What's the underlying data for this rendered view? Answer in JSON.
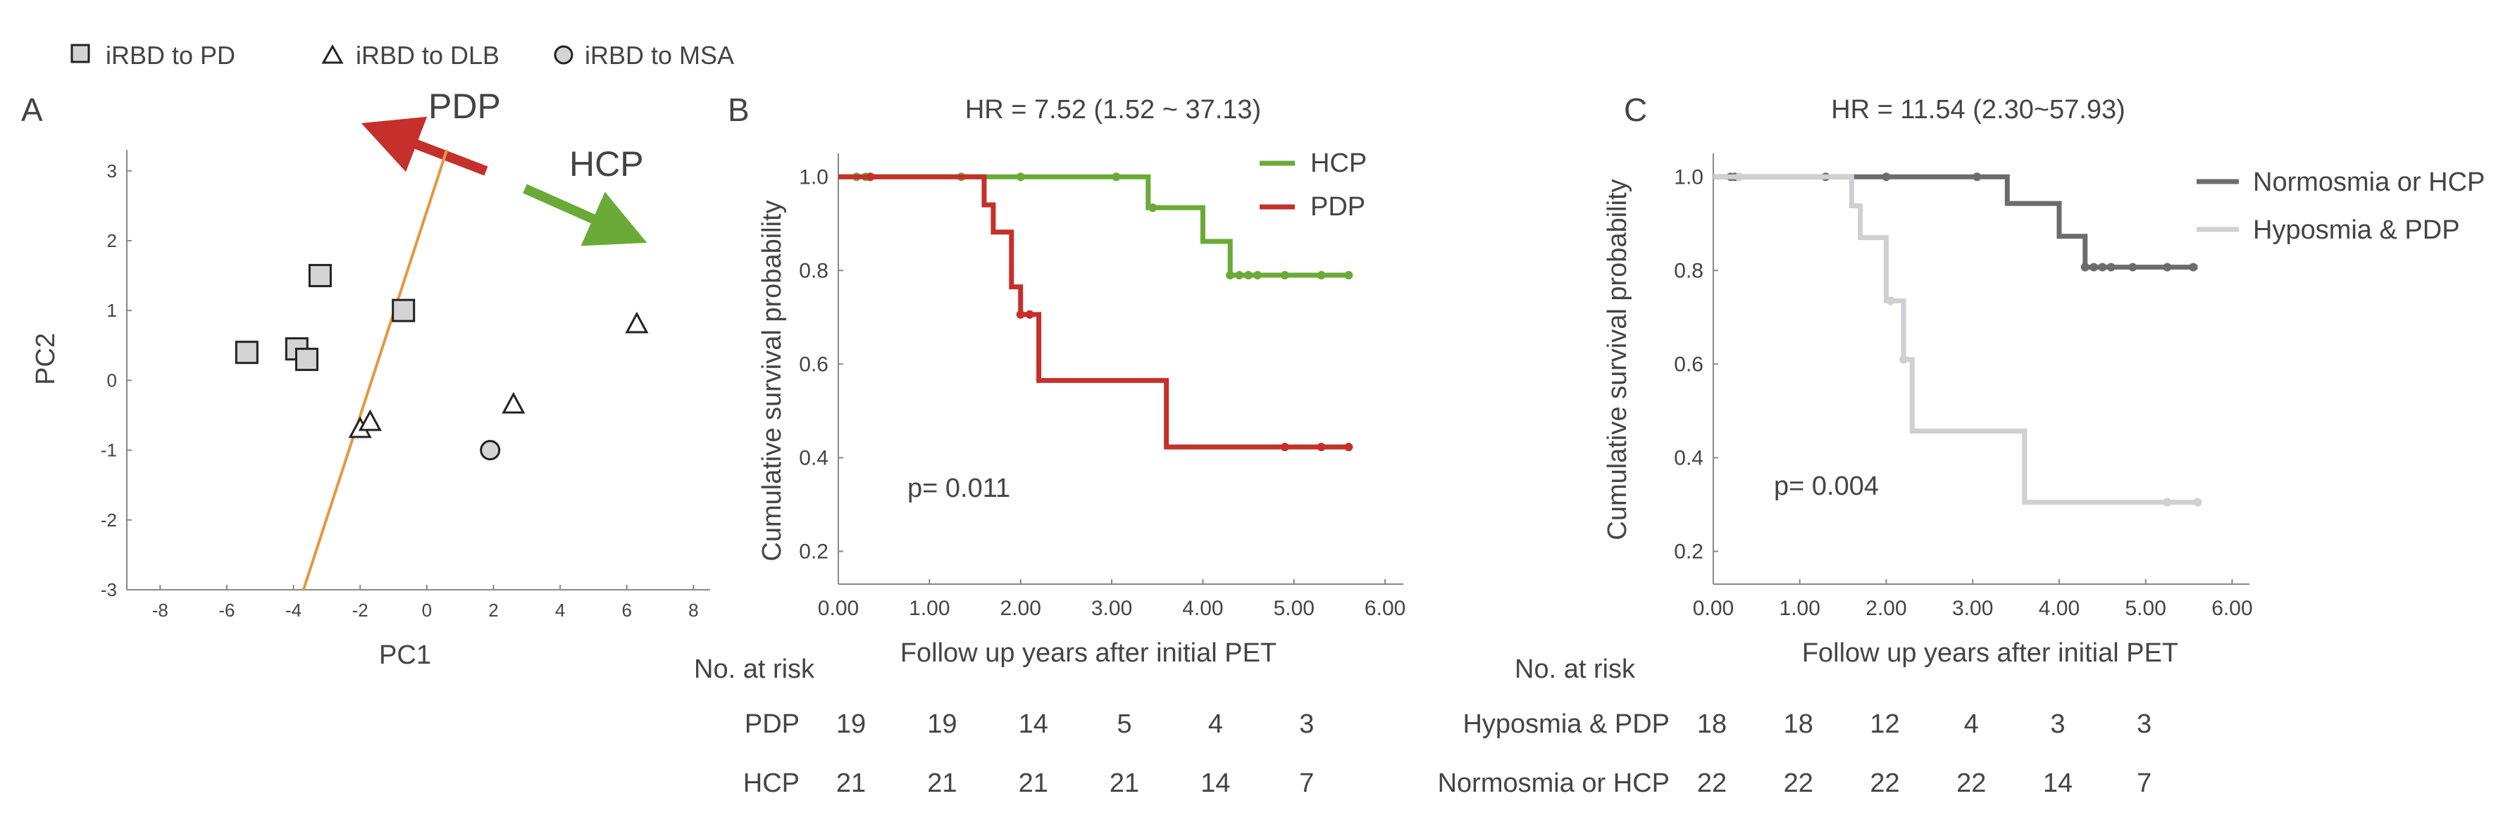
{
  "legend": [
    {
      "label": "iRBD to PD",
      "marker": "square"
    },
    {
      "label": "iRBD to DLB",
      "marker": "triangle"
    },
    {
      "label": "iRBD to MSA",
      "marker": "circle"
    }
  ],
  "colors": {
    "pdp_red": "#c5302a",
    "hcp_green": "#6aaa36",
    "divider_orange": "#e8973f",
    "normosmia_dark": "#6c6c6c",
    "hyposmia_light": "#cfcfd4",
    "marker_fill": "#d4d4d4"
  },
  "panel_a": {
    "label": "A",
    "arrow_pdp_label": "PDP",
    "arrow_hcp_label": "HCP",
    "xlabel": "PC1",
    "ylabel": "PC2",
    "xticks": [
      "-8",
      "-6",
      "-4",
      "-2",
      "0",
      "2",
      "4",
      "6",
      "8"
    ],
    "yticks": [
      "3",
      "2",
      "1",
      "0",
      "-1",
      "-2",
      "-3"
    ]
  },
  "panel_b": {
    "label": "B",
    "title": "HR = 7.52 (1.52 ~ 37.13)",
    "pvalue": "p= 0.011",
    "xlabel": "Follow up years after initial PET",
    "ylabel": "Cumulative survival probability",
    "xticks": [
      "0.00",
      "1.00",
      "2.00",
      "3.00",
      "4.00",
      "5.00",
      "6.00"
    ],
    "yticks": [
      "1.0",
      "0.8",
      "0.6",
      "0.4",
      "0.2"
    ],
    "series_names": [
      "HCP",
      "PDP"
    ],
    "risk_title": "No. at risk",
    "risk_rows": [
      {
        "label": "PDP",
        "values": [
          "19",
          "19",
          "14",
          "5",
          "4",
          "3"
        ]
      },
      {
        "label": "HCP",
        "values": [
          "21",
          "21",
          "21",
          "21",
          "14",
          "7"
        ]
      }
    ]
  },
  "panel_c": {
    "label": "C",
    "title": "HR = 11.54 (2.30~57.93)",
    "pvalue": "p= 0.004",
    "xlabel": "Follow up years after initial PET",
    "ylabel": "Cumulative survival probability",
    "xticks": [
      "0.00",
      "1.00",
      "2.00",
      "3.00",
      "4.00",
      "5.00",
      "6.00"
    ],
    "yticks": [
      "1.0",
      "0.8",
      "0.6",
      "0.4",
      "0.2"
    ],
    "series_names": [
      "Normosmia or HCP",
      "Hyposmia & PDP"
    ],
    "risk_title": "No. at risk",
    "risk_rows": [
      {
        "label": "Hyposmia & PDP",
        "values": [
          "18",
          "18",
          "12",
          "4",
          "3",
          "3"
        ]
      },
      {
        "label": "Normosmia or HCP",
        "values": [
          "22",
          "22",
          "22",
          "22",
          "14",
          "7"
        ]
      }
    ]
  },
  "chart_data": [
    {
      "type": "scatter",
      "xlabel": "PC1",
      "ylabel": "PC2",
      "xlim": [
        -9,
        8.5
      ],
      "ylim": [
        -3,
        3.3
      ],
      "series": [
        {
          "name": "iRBD to PD",
          "points": [
            [
              -5.4,
              0.4
            ],
            [
              -3.9,
              0.45
            ],
            [
              -3.6,
              0.3
            ],
            [
              -3.2,
              1.5
            ],
            [
              -0.7,
              1.0
            ]
          ]
        },
        {
          "name": "iRBD to DLB",
          "points": [
            [
              -2.0,
              -0.7
            ],
            [
              -1.7,
              -0.6
            ],
            [
              2.6,
              -0.35
            ],
            [
              6.3,
              0.8
            ]
          ]
        },
        {
          "name": "iRBD to MSA",
          "points": [
            [
              1.9,
              -1.0
            ]
          ]
        }
      ],
      "divider_line": [
        [
          -3.7,
          -3.0
        ],
        [
          0.6,
          3.3
        ]
      ]
    },
    {
      "type": "line",
      "title": "HR = 7.52 (1.52 ~ 37.13)",
      "xlabel": "Follow up years after initial PET",
      "ylabel": "Cumulative survival probability",
      "xlim": [
        0,
        6.2
      ],
      "ylim": [
        0.13,
        1.05
      ],
      "series": [
        {
          "name": "HCP",
          "steps": [
            [
              0,
              1.0
            ],
            [
              3.4,
              0.934
            ],
            [
              4.0,
              0.862
            ],
            [
              4.3,
              0.79
            ],
            [
              5.6,
              0.79
            ]
          ],
          "censor": [
            0.2,
            0.3,
            1.35,
            2.0,
            3.05,
            3.45,
            4.3,
            4.4,
            4.5,
            4.6,
            4.9,
            5.3,
            5.6
          ]
        },
        {
          "name": "PDP",
          "steps": [
            [
              0,
              1.0
            ],
            [
              1.6,
              0.94
            ],
            [
              1.7,
              0.882
            ],
            [
              1.9,
              0.765
            ],
            [
              2.0,
              0.706
            ],
            [
              2.2,
              0.565
            ],
            [
              3.6,
              0.423
            ],
            [
              5.6,
              0.423
            ]
          ],
          "censor": [
            0.35,
            2.0,
            2.1,
            4.9,
            5.3,
            5.6
          ]
        }
      ]
    },
    {
      "type": "line",
      "title": "HR = 11.54 (2.30~57.93)",
      "xlabel": "Follow up years after initial PET",
      "ylabel": "Cumulative survival probability",
      "xlim": [
        0,
        6.2
      ],
      "ylim": [
        0.13,
        1.05
      ],
      "series": [
        {
          "name": "Normosmia or HCP",
          "steps": [
            [
              0,
              1.0
            ],
            [
              3.4,
              0.943
            ],
            [
              4.0,
              0.873
            ],
            [
              4.3,
              0.807
            ],
            [
              5.6,
              0.807
            ]
          ],
          "censor": [
            0.2,
            0.25,
            1.3,
            2.0,
            3.05,
            4.3,
            4.4,
            4.5,
            4.6,
            4.85,
            5.25,
            5.55
          ]
        },
        {
          "name": "Hyposmia & PDP",
          "steps": [
            [
              0,
              1.0
            ],
            [
              1.6,
              0.938
            ],
            [
              1.7,
              0.87
            ],
            [
              2.0,
              0.735
            ],
            [
              2.2,
              0.61
            ],
            [
              2.3,
              0.457
            ],
            [
              3.6,
              0.305
            ],
            [
              5.6,
              0.305
            ]
          ],
          "censor": [
            0.3,
            2.05,
            2.2,
            5.25,
            5.6
          ]
        }
      ]
    }
  ]
}
